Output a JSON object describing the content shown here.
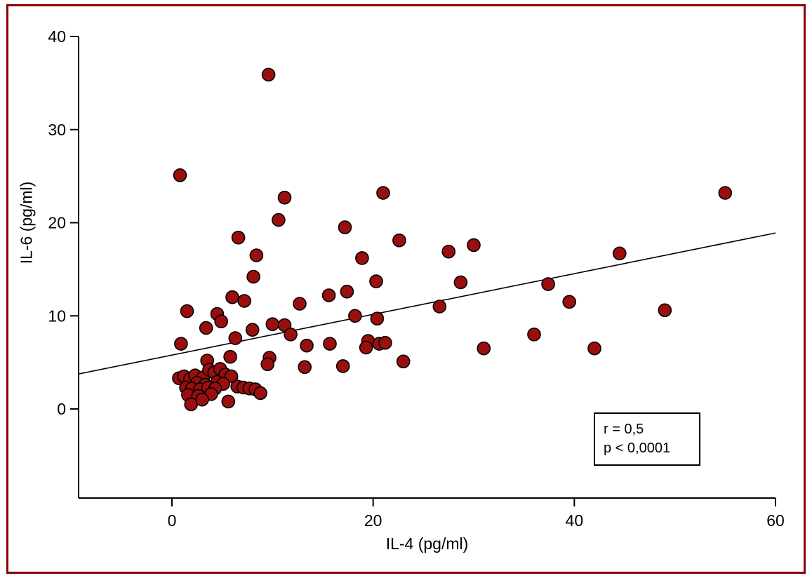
{
  "page": {
    "background": "#ffffff",
    "frame_color": "#8b0000"
  },
  "chart_data": {
    "type": "scatter",
    "title": "",
    "xlabel": "IL-4 (pg/ml)",
    "ylabel": "IL-6 (pg/ml)",
    "x_ticks": [
      0,
      20,
      40,
      60
    ],
    "y_ticks": [
      0,
      10,
      20,
      30,
      40
    ],
    "xlim": [
      -9.3,
      60
    ],
    "ylim": [
      -9.6,
      40
    ],
    "grid": false,
    "legend": "none",
    "point_color": "#9b0e0e",
    "point_stroke": "#000000",
    "points": [
      [
        9.6,
        35.9
      ],
      [
        0.8,
        25.1
      ],
      [
        11.2,
        22.7
      ],
      [
        21.0,
        23.2
      ],
      [
        55.0,
        23.2
      ],
      [
        10.6,
        20.3
      ],
      [
        17.2,
        19.5
      ],
      [
        6.6,
        18.4
      ],
      [
        22.6,
        18.1
      ],
      [
        30.0,
        17.6
      ],
      [
        27.5,
        16.9
      ],
      [
        8.4,
        16.5
      ],
      [
        44.5,
        16.7
      ],
      [
        18.9,
        16.2
      ],
      [
        8.1,
        14.2
      ],
      [
        28.7,
        13.6
      ],
      [
        20.3,
        13.7
      ],
      [
        37.4,
        13.4
      ],
      [
        17.4,
        12.6
      ],
      [
        15.6,
        12.2
      ],
      [
        6.0,
        12.0
      ],
      [
        39.5,
        11.5
      ],
      [
        12.7,
        11.3
      ],
      [
        26.6,
        11.0
      ],
      [
        7.2,
        11.6
      ],
      [
        49.0,
        10.6
      ],
      [
        1.5,
        10.5
      ],
      [
        4.5,
        10.2
      ],
      [
        18.2,
        10.0
      ],
      [
        20.4,
        9.7
      ],
      [
        4.9,
        9.4
      ],
      [
        10.0,
        9.1
      ],
      [
        11.2,
        9.0
      ],
      [
        3.4,
        8.7
      ],
      [
        8.0,
        8.5
      ],
      [
        11.8,
        8.0
      ],
      [
        36.0,
        8.0
      ],
      [
        6.3,
        7.6
      ],
      [
        0.9,
        7.0
      ],
      [
        19.5,
        7.3
      ],
      [
        15.7,
        7.0
      ],
      [
        13.4,
        6.8
      ],
      [
        19.3,
        6.6
      ],
      [
        20.6,
        7.0
      ],
      [
        21.2,
        7.1
      ],
      [
        31.0,
        6.5
      ],
      [
        42.0,
        6.5
      ],
      [
        5.8,
        5.6
      ],
      [
        9.7,
        5.5
      ],
      [
        23.0,
        5.1
      ],
      [
        3.5,
        5.2
      ],
      [
        17.0,
        4.6
      ],
      [
        13.2,
        4.5
      ],
      [
        9.5,
        4.8
      ],
      [
        0.7,
        3.3
      ],
      [
        1.2,
        3.5
      ],
      [
        1.8,
        3.2
      ],
      [
        2.3,
        3.6
      ],
      [
        3.1,
        3.4
      ],
      [
        3.7,
        4.2
      ],
      [
        4.2,
        3.9
      ],
      [
        4.8,
        4.3
      ],
      [
        5.3,
        3.7
      ],
      [
        5.9,
        3.5
      ],
      [
        2.5,
        2.8
      ],
      [
        3.3,
        2.6
      ],
      [
        4.5,
        2.9
      ],
      [
        5.1,
        2.7
      ],
      [
        1.4,
        2.3
      ],
      [
        2.0,
        2.2
      ],
      [
        2.8,
        2.1
      ],
      [
        3.6,
        2.3
      ],
      [
        4.3,
        2.2
      ],
      [
        6.5,
        2.4
      ],
      [
        7.1,
        2.3
      ],
      [
        7.7,
        2.2
      ],
      [
        8.3,
        2.1
      ],
      [
        1.6,
        1.5
      ],
      [
        2.6,
        1.4
      ],
      [
        3.9,
        1.6
      ],
      [
        8.8,
        1.7
      ],
      [
        1.9,
        0.5
      ],
      [
        5.6,
        0.8
      ],
      [
        3.0,
        1.0
      ]
    ],
    "trend_line": {
      "x1": -9.3,
      "y1": 3.75,
      "x2": 60,
      "y2": 18.9,
      "color": "#000000"
    },
    "annotation": {
      "line1": "r = 0,5",
      "line2": "p < 0,0001"
    }
  }
}
